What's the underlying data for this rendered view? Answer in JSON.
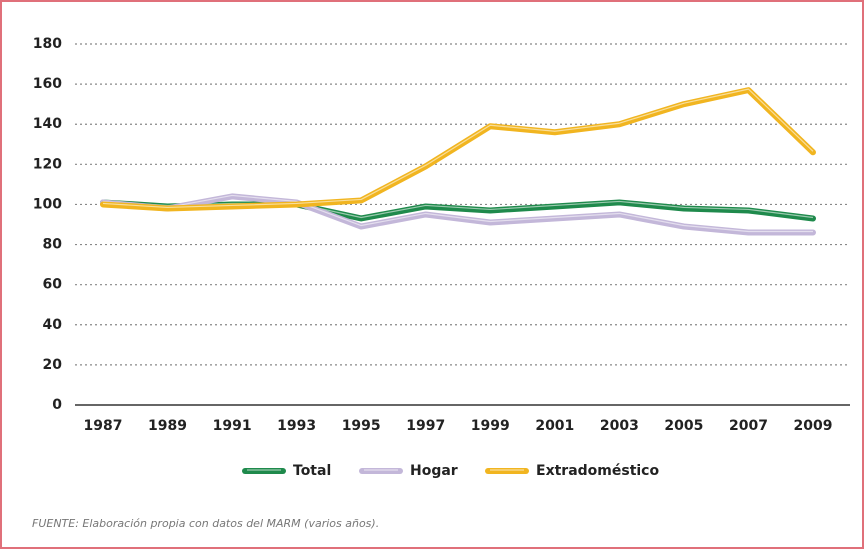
{
  "chart_data": {
    "type": "line",
    "categories": [
      "1987",
      "1989",
      "1991",
      "1993",
      "1995",
      "1997",
      "1999",
      "2001",
      "2003",
      "2005",
      "2007",
      "2009"
    ],
    "series": [
      {
        "name": "Total",
        "color": "#1f8a4c",
        "values": [
          101,
          99,
          100,
          100,
          93,
          99,
          97,
          99,
          101,
          98,
          97,
          93
        ]
      },
      {
        "name": "Hogar",
        "color": "#c3b7d9",
        "values": [
          101,
          98,
          104,
          101,
          89,
          95,
          91,
          93,
          95,
          89,
          86,
          86
        ]
      },
      {
        "name": "Extradoméstico",
        "color": "#f1b520",
        "values": [
          100,
          98,
          99,
          100,
          102,
          119,
          139,
          136,
          140,
          150,
          157,
          126
        ]
      }
    ],
    "ylim": [
      0,
      180
    ],
    "yticks": [
      0,
      20,
      40,
      60,
      80,
      100,
      120,
      140,
      160,
      180
    ],
    "grid": true,
    "legend": "bottom",
    "source": "FUENTE: Elaboración propia con datos del MARM (varios años)."
  }
}
